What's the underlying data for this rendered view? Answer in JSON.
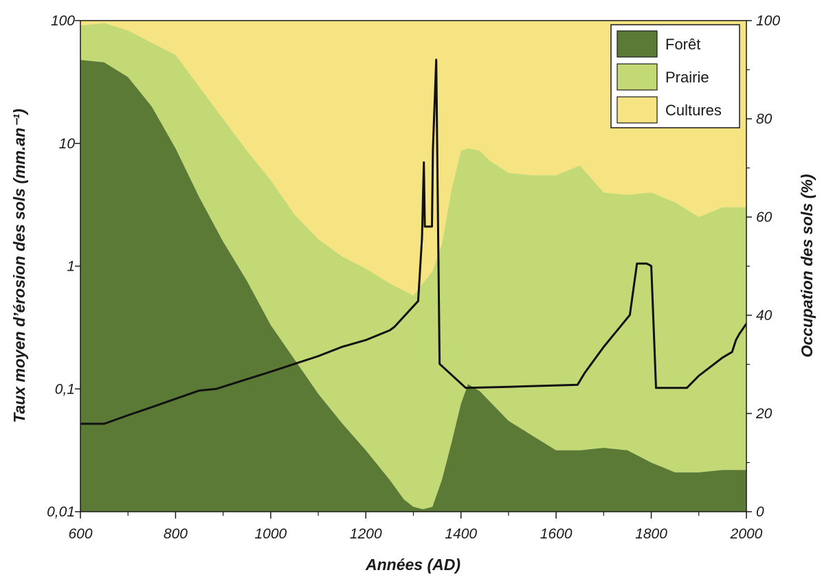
{
  "chart_data": {
    "type": "area",
    "xlabel": "Années (AD)",
    "ylabel_left": "Taux moyen d’érosion des sols (mm.an⁻¹)",
    "ylabel_right": "Occupation des sols (%)",
    "xlim": [
      600,
      2000
    ],
    "x_ticks": [
      600,
      800,
      1000,
      1200,
      1400,
      1600,
      1800,
      2000
    ],
    "x_tick_labels": [
      "600",
      "800",
      "1000",
      "1200",
      "1400",
      "1600",
      "1800",
      "2000"
    ],
    "ylim_left": [
      0.01,
      100
    ],
    "yscale_left": "log",
    "y_ticks_left": [
      0.01,
      0.1,
      1,
      10,
      100
    ],
    "y_tick_labels_left": [
      "0,01",
      "0,1",
      "1",
      "10",
      "100"
    ],
    "ylim_right": [
      0,
      100
    ],
    "y_ticks_right": [
      0,
      20,
      40,
      60,
      80,
      100
    ],
    "y_tick_labels_right": [
      "0",
      "20",
      "40",
      "60",
      "80",
      "100"
    ],
    "grid": false,
    "legend": {
      "placement": "top-right",
      "entries": [
        {
          "name": "Forêt",
          "color": "#5a7a35"
        },
        {
          "name": "Prairie",
          "color": "#c3d975"
        },
        {
          "name": "Cultures",
          "color": "#f6e483"
        }
      ]
    },
    "stack_series": [
      {
        "name": "Forêt",
        "axis": "right",
        "color": "#5a7a35",
        "x": [
          600,
          650,
          700,
          750,
          800,
          850,
          900,
          950,
          1000,
          1050,
          1100,
          1150,
          1200,
          1250,
          1280,
          1300,
          1320,
          1340,
          1360,
          1380,
          1400,
          1415,
          1440,
          1460,
          1500,
          1550,
          1600,
          1650,
          1700,
          1750,
          1800,
          1850,
          1900,
          1950,
          2000
        ],
        "y": [
          92,
          91.5,
          88.5,
          82.5,
          74,
          64,
          55,
          47,
          38,
          31,
          24,
          18,
          12.5,
          6.5,
          2.5,
          1,
          0.5,
          1,
          6.5,
          14,
          22,
          26,
          24.5,
          22.5,
          18.5,
          15.5,
          12.5,
          12.5,
          13,
          12.5,
          10,
          8,
          8,
          8.5,
          8.5
        ]
      },
      {
        "name": "Prairie",
        "axis": "right",
        "color": "#c3d975",
        "x": [
          600,
          650,
          700,
          750,
          800,
          850,
          900,
          950,
          1000,
          1050,
          1100,
          1150,
          1200,
          1250,
          1280,
          1300,
          1320,
          1340,
          1360,
          1380,
          1400,
          1415,
          1440,
          1460,
          1500,
          1550,
          1600,
          1650,
          1700,
          1750,
          1800,
          1850,
          1900,
          1950,
          2000
        ],
        "y": [
          7,
          8,
          9.5,
          13,
          19,
          22.5,
          25,
          26.5,
          29.5,
          29.5,
          31.5,
          34,
          37,
          40,
          42.5,
          43,
          46,
          48,
          48,
          51.5,
          51.5,
          48,
          49,
          49,
          50.5,
          53,
          56,
          58,
          52,
          52,
          55,
          55,
          52,
          53.5,
          53.5
        ]
      },
      {
        "name": "Cultures",
        "axis": "right",
        "color": "#f6e483",
        "x": [
          600,
          2000
        ],
        "y": [
          100,
          100
        ]
      }
    ],
    "series": [
      {
        "name": "Taux moyen d’érosion des sols",
        "axis": "left",
        "color": "#111111",
        "x": [
          600,
          650,
          700,
          750,
          800,
          850,
          885,
          950,
          1000,
          1050,
          1100,
          1150,
          1200,
          1250,
          1260,
          1310,
          1318,
          1322,
          1324,
          1337,
          1339,
          1341,
          1348,
          1355,
          1410,
          1500,
          1645,
          1660,
          1700,
          1755,
          1770,
          1790,
          1797,
          1800,
          1810,
          1875,
          1900,
          1950,
          1970,
          1978,
          1985,
          2000
        ],
        "y": [
          0.052,
          0.052,
          0.061,
          0.071,
          0.083,
          0.097,
          0.1,
          0.12,
          0.138,
          0.16,
          0.185,
          0.22,
          0.25,
          0.3,
          0.32,
          0.52,
          1.7,
          7.0,
          2.1,
          2.1,
          2.1,
          9.0,
          48,
          0.16,
          0.102,
          0.104,
          0.108,
          0.135,
          0.22,
          0.4,
          1.05,
          1.05,
          1.02,
          1.0,
          0.102,
          0.102,
          0.128,
          0.18,
          0.2,
          0.25,
          0.28,
          0.34
        ]
      }
    ]
  }
}
